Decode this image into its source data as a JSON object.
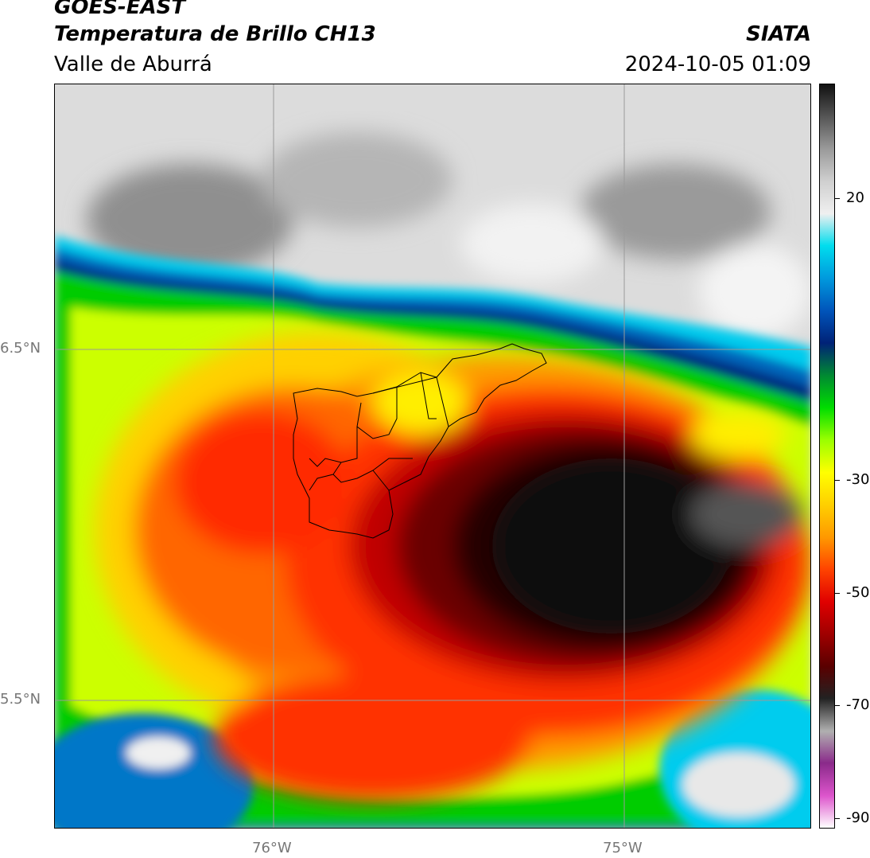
{
  "header": {
    "title_line1": "GOES-EAST",
    "title_line2": "Temperatura de Brillo CH13",
    "subtitle": "Valle de Aburrá",
    "organization": "SIATA",
    "datetime": "2024-10-05 01:09"
  },
  "map": {
    "lat_labels": [
      "6.5°N",
      "5.5°N"
    ],
    "lon_labels": [
      "76°W",
      "75°W"
    ]
  },
  "colorbar": {
    "tick_labels": [
      "20",
      "-30",
      "-50",
      "-70",
      "-90"
    ],
    "colors": [
      "#ffffff",
      "#dd55cc",
      "#8a2a8a",
      "#b0b0b0",
      "#222222",
      "#5a0000",
      "#a00000",
      "#e00000",
      "#ff4400",
      "#ff9900",
      "#ffd000",
      "#ffff00",
      "#99ff00",
      "#00dd00",
      "#008833",
      "#002277",
      "#0055bb",
      "#0099dd",
      "#00ddee",
      "#f0f0f0",
      "#cfcfcf",
      "#9a9a9a",
      "#555555",
      "#111111"
    ]
  }
}
